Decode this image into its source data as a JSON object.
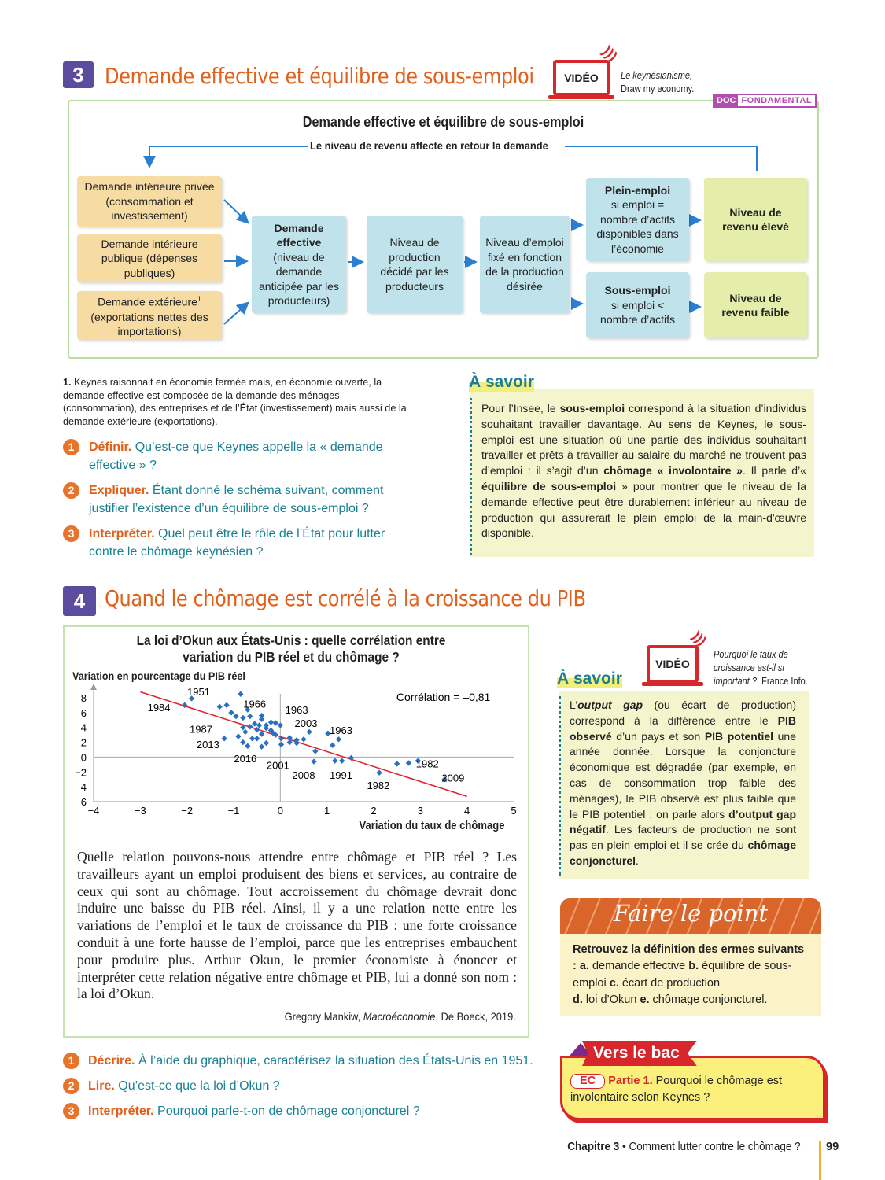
{
  "doc3": {
    "number": "3",
    "title": "Demande effective et équilibre de sous-emploi",
    "video": {
      "label": "VIDÉO",
      "title": "Le keynésianisme,",
      "source": "Draw my economy."
    },
    "badge": {
      "a": "DOC",
      "b": "FONDAMENTAL"
    },
    "diagram": {
      "title": "Demande effective et équilibre de sous-emploi",
      "feedback": "Le niveau de revenu affecte en retour la demande",
      "boxes": {
        "private": "Demande intérieure privée (consommation et investissement)",
        "public": "Demande intérieure publique (dépenses publiques)",
        "external": "Demande extérieure",
        "external_sup": "1",
        "external_detail": "(exportations nettes des importations)",
        "de_title": "Demande effective",
        "de_detail": "(niveau de demande anticipée par les producteurs)",
        "production": "Niveau de production décidé par les producteurs",
        "employment": "Niveau d’emploi fixé en fonction de la production désirée",
        "full_title": "Plein-emploi",
        "full_detail": "si emploi = nombre d’actifs disponibles dans l’économie",
        "under_title": "Sous-emploi",
        "under_detail": "si emploi < nombre d’actifs",
        "high": "Niveau de revenu élevé",
        "low": "Niveau de revenu faible"
      }
    },
    "footnote_num": "1.",
    "footnote": "Keynes raisonnait en économie fermée mais, en économie ouverte, la demande effective est composée de la demande des ménages (consommation), des entreprises et de l’État (investissement) mais aussi de la demande extérieure (exportations).",
    "questions": [
      {
        "n": "1",
        "verb": "Définir.",
        "text": "Qu’est-ce que Keynes appelle la « demande effective » ?"
      },
      {
        "n": "2",
        "verb": "Expliquer.",
        "text": "Étant donné le schéma suivant, comment justifier l’existence d’un équilibre de sous-emploi ?"
      },
      {
        "n": "3",
        "verb": "Interpréter.",
        "text": "Quel peut être le rôle de l’État pour lutter contre le chômage keynésien ?"
      }
    ],
    "savoir": {
      "title": "À savoir",
      "p1": "Pour l’Insee, le ",
      "b1": "sous-emploi",
      "p2": " correspond à la situation d’individus souhaitant travailler davantage. Au sens de Keynes, le sous-emploi est une situation où une partie des individus souhaitant travailler et prêts à travailler au salaire du marché ne trouvent pas d’emploi : il s’agit d’un ",
      "b2": "chômage « involontaire »",
      "p3": ". Il parle d’« ",
      "b3": "équilibre de sous-emploi",
      "p4": " » pour montrer que le niveau de la demande effective peut être durablement inférieur au niveau de production qui assurerait le plein emploi de la main-d'œuvre disponible."
    }
  },
  "doc4": {
    "number": "4",
    "title": "Quand le chômage est corrélé à la croissance du PIB",
    "chart_title": "La loi d’Okun aux États-Unis : quelle corrélation entre variation du PIB réel et du chômage ?",
    "text": "Quelle relation pouvons-nous attendre entre chômage et PIB réel ? Les travailleurs ayant un emploi produisent des biens et services, au contraire de ceux qui sont au chômage. Tout accroissement du chômage devrait donc induire une baisse du PIB réel. Ainsi, il y a une relation nette entre les variations de l’emploi et le taux de croissance du PIB : une forte croissance conduit à une forte hausse de l’emploi, parce que les entreprises embauchent pour produire plus. Arthur Okun, le premier économiste à énoncer et interpréter cette relation négative entre chômage et PIB, lui a donné son nom : la loi d’Okun.",
    "source_author": "Gregory Mankiw, ",
    "source_title": "Macroéconomie",
    "source_rest": ", De Boeck, 2019.",
    "video": {
      "label": "VIDÉO",
      "title": "Pourquoi le taux de croissance est-il si important ?",
      "source": ", France Info."
    },
    "savoir": {
      "title": "À savoir",
      "p1": "L’",
      "b1": "output gap",
      "p2": " (ou écart de production) correspond à la différence entre le ",
      "b2": "PIB observé",
      "p3": " d’un pays et son ",
      "b3": "PIB potentiel",
      "p4": " une année donnée. Lorsque la conjoncture économique est dégradée (par exemple, en cas de consommation trop faible des ménages), le PIB observé est plus faible que le PIB potentiel : on parle alors ",
      "b4": "d’output gap négatif",
      "p5": ". Les facteurs de production ne sont pas en plein emploi et il se crée du ",
      "b5": "chômage conjoncturel",
      "p6": "."
    },
    "questions": [
      {
        "n": "1",
        "verb": "Décrire.",
        "text": "À l’aide du graphique, caractérisez la situation des États-Unis en 1951."
      },
      {
        "n": "2",
        "verb": "Lire.",
        "text": "Qu’est-ce que la loi d’Okun ?"
      },
      {
        "n": "3",
        "verb": "Interpréter.",
        "text": "Pourquoi parle-t-on de chômage conjoncturel ?"
      }
    ]
  },
  "faire_le_point": {
    "title": "Faire le point",
    "b1": "Retrouvez la définition des  ermes suivants : a.",
    "t1": " demande effective ",
    "b2": "b.",
    "t2": " équilibre de sous-emploi ",
    "b3": "c.",
    "t3": " écart de production ",
    "b4": "d.",
    "t4": " loi d’Okun ",
    "b5": "e.",
    "t5": " chômage conjoncturel."
  },
  "vers_le_bac": {
    "title": "Vers le bac",
    "tag": "EC",
    "part": "Partie 1.",
    "text": " Pourquoi le chômage est involontaire selon Keynes ?"
  },
  "footer": {
    "chapter": "Chapitre 3",
    "sep": " • ",
    "title": "Comment lutter contre le chômage ?",
    "page": "99"
  },
  "colors": {
    "heading": "#e0601c",
    "number_box": "#5b4c9e",
    "teal": "#1a7f91",
    "arrow": "#2b7fd0",
    "trend": "#e0262c",
    "points": "#2b6fc4"
  },
  "chart_data": {
    "type": "scatter",
    "ylabel": "Variation en pourcentage du PIB réel",
    "xlabel": "Variation du taux de chômage",
    "xlim": [
      -4,
      5
    ],
    "ylim": [
      -6,
      8
    ],
    "xticks": [
      -4,
      -3,
      -2,
      -1,
      0,
      1,
      2,
      3,
      4,
      5
    ],
    "yticks": [
      8,
      6,
      4,
      2,
      0,
      -2,
      -4,
      -6
    ],
    "annotation": "Corrélation = –0,81",
    "trendline": [
      [
        -3,
        8.8
      ],
      [
        4,
        -5.3
      ]
    ],
    "points": [
      [
        -2.05,
        7
      ],
      [
        -1.9,
        7.9
      ],
      [
        -0.85,
        8.5
      ],
      [
        -1.3,
        6.8
      ],
      [
        -1.15,
        7
      ],
      [
        -1.05,
        6
      ],
      [
        -0.95,
        5.5
      ],
      [
        -0.8,
        5.3
      ],
      [
        -0.7,
        6.4
      ],
      [
        -0.65,
        5.5
      ],
      [
        -0.4,
        5.6
      ],
      [
        -0.4,
        5.1
      ],
      [
        -0.55,
        4.5
      ],
      [
        -0.45,
        4.3
      ],
      [
        -0.3,
        4.3
      ],
      [
        -0.2,
        4.7
      ],
      [
        -0.1,
        4.6
      ],
      [
        0,
        4.3
      ],
      [
        -0.8,
        4
      ],
      [
        -0.65,
        4.1
      ],
      [
        -0.75,
        3.4
      ],
      [
        -0.5,
        3.7
      ],
      [
        -0.3,
        3.9
      ],
      [
        -0.2,
        3.6
      ],
      [
        -0.15,
        3.2
      ],
      [
        -0.4,
        3.1
      ],
      [
        -0.1,
        3
      ],
      [
        0.02,
        2.5
      ],
      [
        -1.2,
        2.5
      ],
      [
        -0.9,
        2.8
      ],
      [
        -0.6,
        2.5
      ],
      [
        -0.5,
        2.5
      ],
      [
        -0.8,
        2
      ],
      [
        -0.7,
        1.5
      ],
      [
        -0.4,
        1.4
      ],
      [
        -0.3,
        1.9
      ],
      [
        0.02,
        1.7
      ],
      [
        0.2,
        2.6
      ],
      [
        0.2,
        2
      ],
      [
        0.35,
        2.3
      ],
      [
        0.35,
        1.9
      ],
      [
        0.5,
        2.4
      ],
      [
        0.62,
        3.4
      ],
      [
        0.75,
        0.8
      ],
      [
        0.72,
        -0.6
      ],
      [
        1.02,
        3.2
      ],
      [
        1.12,
        1.6
      ],
      [
        1.25,
        2.4
      ],
      [
        1.17,
        -0.5
      ],
      [
        1.32,
        -0.5
      ],
      [
        1.52,
        -0.1
      ],
      [
        2.12,
        -2.1
      ],
      [
        2.5,
        -0.9
      ],
      [
        2.75,
        -0.8
      ],
      [
        2.95,
        -0.5
      ],
      [
        3.52,
        -3
      ]
    ],
    "labels": [
      {
        "t": "1951",
        "x": -1.75,
        "y": 8.3
      },
      {
        "t": "1984",
        "x": -2.6,
        "y": 6.2
      },
      {
        "t": "1966",
        "x": -0.55,
        "y": 6.7
      },
      {
        "t": "1963",
        "x": 0.35,
        "y": 5.9
      },
      {
        "t": "2003",
        "x": 0.55,
        "y": 4.1
      },
      {
        "t": "1963",
        "x": 1.3,
        "y": 3.1
      },
      {
        "t": "1987",
        "x": -1.7,
        "y": 3.3
      },
      {
        "t": "2013",
        "x": -1.55,
        "y": 1.2
      },
      {
        "t": "2016",
        "x": -0.75,
        "y": -0.7
      },
      {
        "t": "2001",
        "x": -0.05,
        "y": -1.6
      },
      {
        "t": "2008",
        "x": 0.5,
        "y": -2.9
      },
      {
        "t": "1991",
        "x": 1.3,
        "y": -2.9
      },
      {
        "t": "1982",
        "x": 3.15,
        "y": -1.4
      },
      {
        "t": "1982",
        "x": 2.1,
        "y": -4.3
      },
      {
        "t": "2009",
        "x": 3.7,
        "y": -3.3
      }
    ]
  }
}
